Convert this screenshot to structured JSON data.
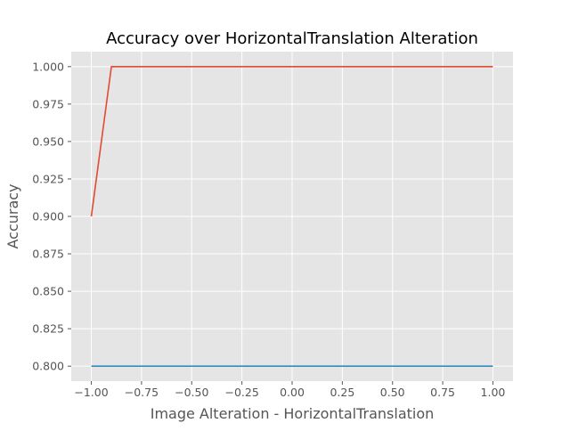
{
  "chart_data": {
    "type": "line",
    "title": "Accuracy over HorizontalTranslation Alteration",
    "xlabel": "Image Alteration - HorizontalTranslation",
    "ylabel": "Accuracy",
    "xlim": [
      -1.1,
      1.1
    ],
    "ylim": [
      0.79,
      1.01
    ],
    "xticks": [
      -1.0,
      -0.75,
      -0.5,
      -0.25,
      0.0,
      0.25,
      0.5,
      0.75,
      1.0
    ],
    "xtick_labels": [
      "−1.00",
      "−0.75",
      "−0.50",
      "−0.25",
      "0.00",
      "0.25",
      "0.50",
      "0.75",
      "1.00"
    ],
    "yticks": [
      0.8,
      0.825,
      0.85,
      0.875,
      0.9,
      0.925,
      0.95,
      0.975,
      1.0
    ],
    "ytick_labels": [
      "0.800",
      "0.825",
      "0.850",
      "0.875",
      "0.900",
      "0.925",
      "0.950",
      "0.975",
      "1.000"
    ],
    "grid": true,
    "legend": "none",
    "series": [
      {
        "color": "#e24a33",
        "x": [
          -1.0,
          -0.9,
          -0.8,
          -0.7,
          -0.6,
          -0.5,
          -0.4,
          -0.3,
          -0.2,
          -0.1,
          0.0,
          0.1,
          0.2,
          0.3,
          0.4,
          0.5,
          0.6,
          0.7,
          0.8,
          0.9,
          1.0
        ],
        "y": [
          0.9,
          1.0,
          1.0,
          1.0,
          1.0,
          1.0,
          1.0,
          1.0,
          1.0,
          1.0,
          1.0,
          1.0,
          1.0,
          1.0,
          1.0,
          1.0,
          1.0,
          1.0,
          1.0,
          1.0,
          1.0
        ]
      },
      {
        "color": "#348abd",
        "x": [
          -1.0,
          -0.9,
          -0.8,
          -0.7,
          -0.6,
          -0.5,
          -0.4,
          -0.3,
          -0.2,
          -0.1,
          0.0,
          0.1,
          0.2,
          0.3,
          0.4,
          0.5,
          0.6,
          0.7,
          0.8,
          0.9,
          1.0
        ],
        "y": [
          0.8,
          0.8,
          0.8,
          0.8,
          0.8,
          0.8,
          0.8,
          0.8,
          0.8,
          0.8,
          0.8,
          0.8,
          0.8,
          0.8,
          0.8,
          0.8,
          0.8,
          0.8,
          0.8,
          0.8,
          0.8
        ]
      }
    ],
    "colors": {
      "plot_background": "#e5e5e5",
      "grid": "#ffffff",
      "tick": "#555555"
    }
  }
}
